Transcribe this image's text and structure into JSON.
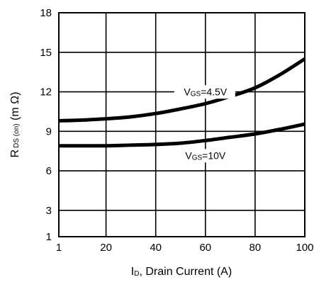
{
  "chart_data": {
    "type": "line",
    "xlabel": {
      "main": "I",
      "sub": "D",
      "rest": ", Drain Current (A)"
    },
    "ylabel": {
      "main": "R",
      "sub": "DS (on)",
      "rest": " (m Ω)"
    },
    "xlim": [
      1,
      100
    ],
    "ylim": [
      1,
      18
    ],
    "x_ticks": [
      1,
      20,
      40,
      60,
      80,
      100
    ],
    "y_ticks": [
      1,
      3,
      6,
      9,
      12,
      15,
      18
    ],
    "grid": true,
    "series": [
      {
        "name": "VGS=4.5V",
        "label": {
          "main": "V",
          "sub": "GS",
          "rest": "=4.5V"
        },
        "color": "#000000",
        "x": [
          1,
          10,
          20,
          30,
          40,
          50,
          60,
          70,
          80,
          90,
          100
        ],
        "y": [
          9.8,
          9.85,
          9.95,
          10.1,
          10.35,
          10.7,
          11.1,
          11.65,
          12.3,
          13.3,
          14.5
        ]
      },
      {
        "name": "VGS=10V",
        "label": {
          "main": "V",
          "sub": "GS",
          "rest": "=10V"
        },
        "color": "#000000",
        "x": [
          1,
          10,
          20,
          30,
          40,
          50,
          60,
          70,
          80,
          90,
          100
        ],
        "y": [
          7.9,
          7.9,
          7.9,
          7.95,
          8.0,
          8.1,
          8.3,
          8.55,
          8.8,
          9.15,
          9.55
        ]
      }
    ]
  }
}
